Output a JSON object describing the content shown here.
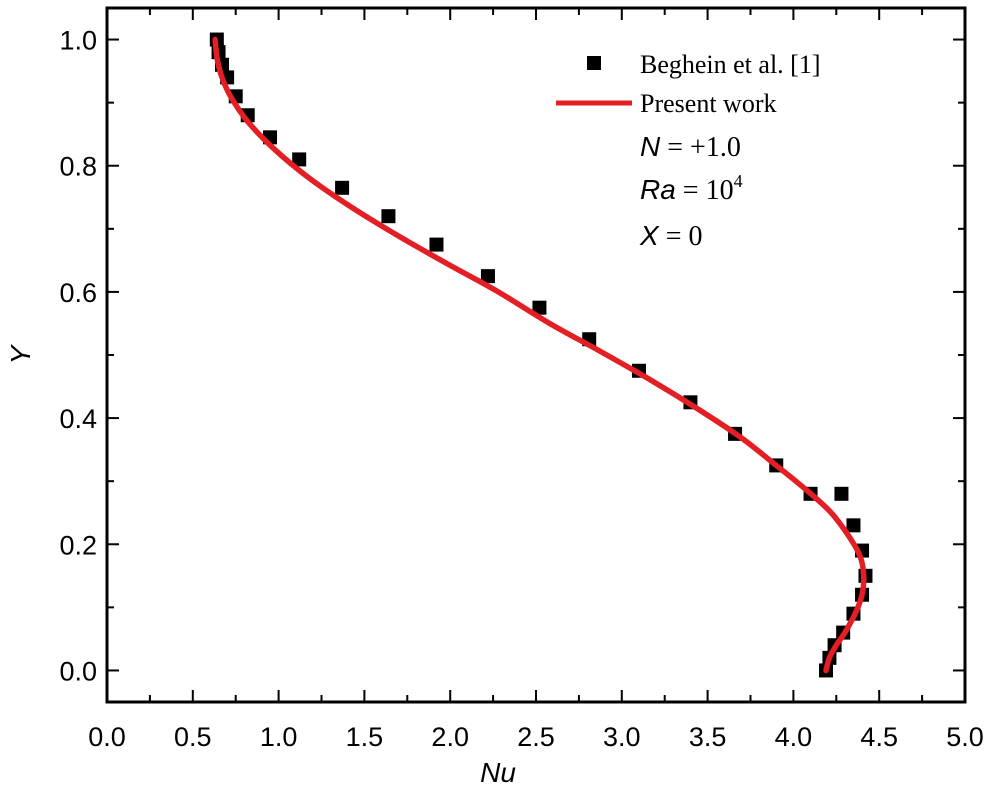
{
  "chart_data": {
    "type": "line",
    "xlabel": "Nu",
    "ylabel": "Y",
    "xlim": [
      0.0,
      5.0
    ],
    "ylim": [
      -0.05,
      1.05
    ],
    "xticks": [
      "0.0",
      "0.5",
      "1.0",
      "1.5",
      "2.0",
      "2.5",
      "3.0",
      "3.5",
      "4.0",
      "4.5",
      "5.0"
    ],
    "yticks": [
      "0.0",
      "0.2",
      "0.4",
      "0.6",
      "0.8",
      "1.0"
    ],
    "grid": false,
    "legend_position": "top-right",
    "series": [
      {
        "name": "Beghein et al. [1]",
        "kind": "scatter",
        "marker": "square",
        "color": "#000000",
        "x": [
          4.19,
          4.21,
          4.24,
          4.29,
          4.35,
          4.4,
          4.42,
          4.4,
          4.35,
          4.28,
          4.1,
          3.9,
          3.66,
          3.4,
          3.1,
          2.81,
          2.52,
          2.22,
          1.92,
          1.64,
          1.37,
          1.12,
          0.95,
          0.82,
          0.75,
          0.7,
          0.67,
          0.65,
          0.64
        ],
        "y": [
          0.0,
          0.02,
          0.04,
          0.06,
          0.09,
          0.12,
          0.15,
          0.19,
          0.23,
          0.28,
          0.28,
          0.325,
          0.375,
          0.425,
          0.475,
          0.525,
          0.575,
          0.625,
          0.675,
          0.72,
          0.765,
          0.81,
          0.845,
          0.88,
          0.91,
          0.94,
          0.96,
          0.98,
          1.0
        ]
      },
      {
        "name": "Present work",
        "kind": "line",
        "color": "#e31e24",
        "x": [
          4.19,
          4.21,
          4.25,
          4.3,
          4.36,
          4.4,
          4.41,
          4.39,
          4.33,
          4.22,
          4.08,
          3.9,
          3.69,
          3.44,
          3.17,
          2.88,
          2.58,
          2.28,
          1.98,
          1.69,
          1.42,
          1.18,
          0.98,
          0.82,
          0.72,
          0.67,
          0.645,
          0.635,
          0.63
        ],
        "y": [
          0.0,
          0.02,
          0.04,
          0.06,
          0.09,
          0.12,
          0.15,
          0.18,
          0.21,
          0.25,
          0.285,
          0.325,
          0.37,
          0.415,
          0.46,
          0.505,
          0.55,
          0.6,
          0.645,
          0.69,
          0.735,
          0.78,
          0.825,
          0.87,
          0.91,
          0.94,
          0.965,
          0.985,
          1.0
        ]
      }
    ],
    "annotations": [
      {
        "var": "N",
        "rest": " = +1.0"
      },
      {
        "var": "Ra",
        "rest": " = 10",
        "sup": "4"
      },
      {
        "var": "X",
        "rest": " = 0"
      }
    ]
  }
}
